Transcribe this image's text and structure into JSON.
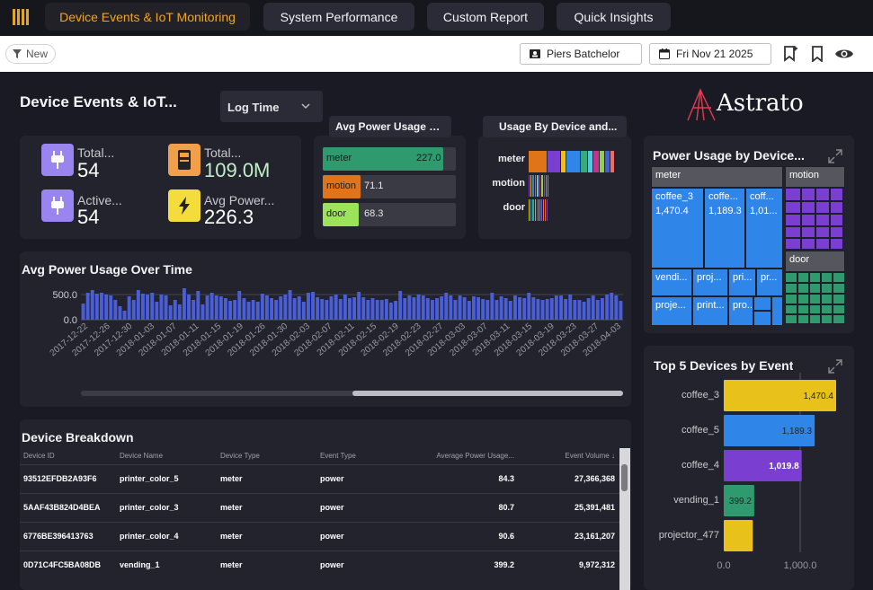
{
  "tabs": [
    {
      "label": "Device Events & IoT Monitoring",
      "active": true
    },
    {
      "label": "System Performance",
      "active": false
    },
    {
      "label": "Custom Report",
      "active": false
    },
    {
      "label": "Quick Insights",
      "active": false
    }
  ],
  "toolbar": {
    "new_label": "New",
    "user_name": "Piers Batchelor",
    "date_label": "Fri Nov 21 2025"
  },
  "header": {
    "title": "Device Events & IoT...",
    "time_select": "Log Time",
    "brand": "Astrato"
  },
  "kpis": [
    {
      "label": "Total...",
      "value": "54",
      "icon": "plug-icon",
      "color": "#9a84f0"
    },
    {
      "label": "Total...",
      "value": "109.0M",
      "icon": "device-icon",
      "color": "#f0a04a",
      "value_color": "#bff0c8"
    },
    {
      "label": "Active...",
      "value": "54",
      "icon": "plug-icon",
      "color": "#9a84f0"
    },
    {
      "label": "Avg Power...",
      "value": "226.3",
      "icon": "lightning-icon",
      "color": "#f4dc3c"
    }
  ],
  "avg_power_by_type": {
    "title": "Avg Power Usage By...",
    "max": 240,
    "rows": [
      {
        "label": "meter",
        "value": 227.0,
        "value_text": "227.0",
        "color": "#2e9a6e"
      },
      {
        "label": "motion",
        "value": 71.1,
        "value_text": "71.1",
        "color": "#e0741a"
      },
      {
        "label": "door",
        "value": 68.3,
        "value_text": "68.3",
        "color": "#9ce35a"
      }
    ]
  },
  "usage_by_device": {
    "title": "Usage By Device and...",
    "rows": [
      {
        "label": "meter",
        "total": 1.0
      },
      {
        "label": "motion",
        "total": 0.24
      },
      {
        "label": "door",
        "total": 0.23
      }
    ],
    "palette": [
      "#e07418",
      "#7a3fd0",
      "#e9c21a",
      "#2f86e8",
      "#3aaa7a",
      "#59c4e0",
      "#c0368d",
      "#8dd24a",
      "#4a5bd6",
      "#f06a6a"
    ]
  },
  "time_chart": {
    "title": "Avg Power Usage Over Time",
    "y_ticks": [
      "500.0",
      "0.0"
    ],
    "x_ticks": [
      "2017-12-22",
      "2017-12-26",
      "2017-12-30",
      "2018-01-03",
      "2018-01-07",
      "2018-01-11",
      "2018-01-15",
      "2018-01-19",
      "2018-01-26",
      "2018-01-30",
      "2018-02-03",
      "2018-02-07",
      "2018-02-11",
      "2018-02-15",
      "2018-02-19",
      "2018-02-23",
      "2018-02-27",
      "2018-03-03",
      "2018-03-07",
      "2018-03-11",
      "2018-03-15",
      "2018-03-19",
      "2018-03-23",
      "2018-03-27",
      "2018-04-03"
    ],
    "bar_color": "#4a5ed8"
  },
  "device_table": {
    "title": "Device Breakdown",
    "columns": [
      "Device ID",
      "Device Name",
      "Device Type",
      "Event Type",
      "Average Power Usage...",
      "Event Volume"
    ],
    "sort_indicator": "↓",
    "rows": [
      [
        "93512EFDB2A93F6",
        "printer_color_5",
        "meter",
        "power",
        "84.3",
        "27,366,368"
      ],
      [
        "5AAF43B824D4BEA",
        "printer_color_3",
        "meter",
        "power",
        "80.7",
        "25,391,481"
      ],
      [
        "6776BE396413763",
        "printer_color_4",
        "meter",
        "power",
        "90.6",
        "23,161,207"
      ],
      [
        "0D71C4FC5BA08DB",
        "vending_1",
        "meter",
        "power",
        "399.2",
        "9,972,312"
      ]
    ]
  },
  "treemap": {
    "title": "Power Usage by Device...",
    "groups": [
      "meter",
      "motion",
      "door"
    ],
    "cells": [
      {
        "label": "coffee_3",
        "value": "1,470.4"
      },
      {
        "label": "coffe...",
        "value": "1,189.3"
      },
      {
        "label": "coff...",
        "value": "1,01..."
      },
      {
        "label": "vendi..."
      },
      {
        "label": "proj..."
      },
      {
        "label": "pri..."
      },
      {
        "label": "pr..."
      },
      {
        "label": "proje..."
      },
      {
        "label": "print..."
      },
      {
        "label": "pro..."
      }
    ],
    "colors": {
      "meter": "#2f86e8",
      "motion": "#7a3fd0",
      "door": "#2e9a6e"
    }
  },
  "chart_data": {
    "type": "bar",
    "title": "Top 5 Devices by Event",
    "categories": [
      "coffee_3",
      "coffee_5",
      "coffee_4",
      "vending_1",
      "projector_477"
    ],
    "values": [
      1470.4,
      1189.3,
      1019.8,
      399.2,
      380
    ],
    "value_labels": [
      "1,470.4",
      "1,189.3",
      "1,019.8",
      "399.2",
      ""
    ],
    "colors": [
      "#e8c21a",
      "#2f86e8",
      "#7a3fd0",
      "#2e9a6e",
      "#e8c21a"
    ],
    "x_ticks": [
      "0.0",
      "1,000.0"
    ],
    "xlim": [
      0,
      1600
    ]
  }
}
